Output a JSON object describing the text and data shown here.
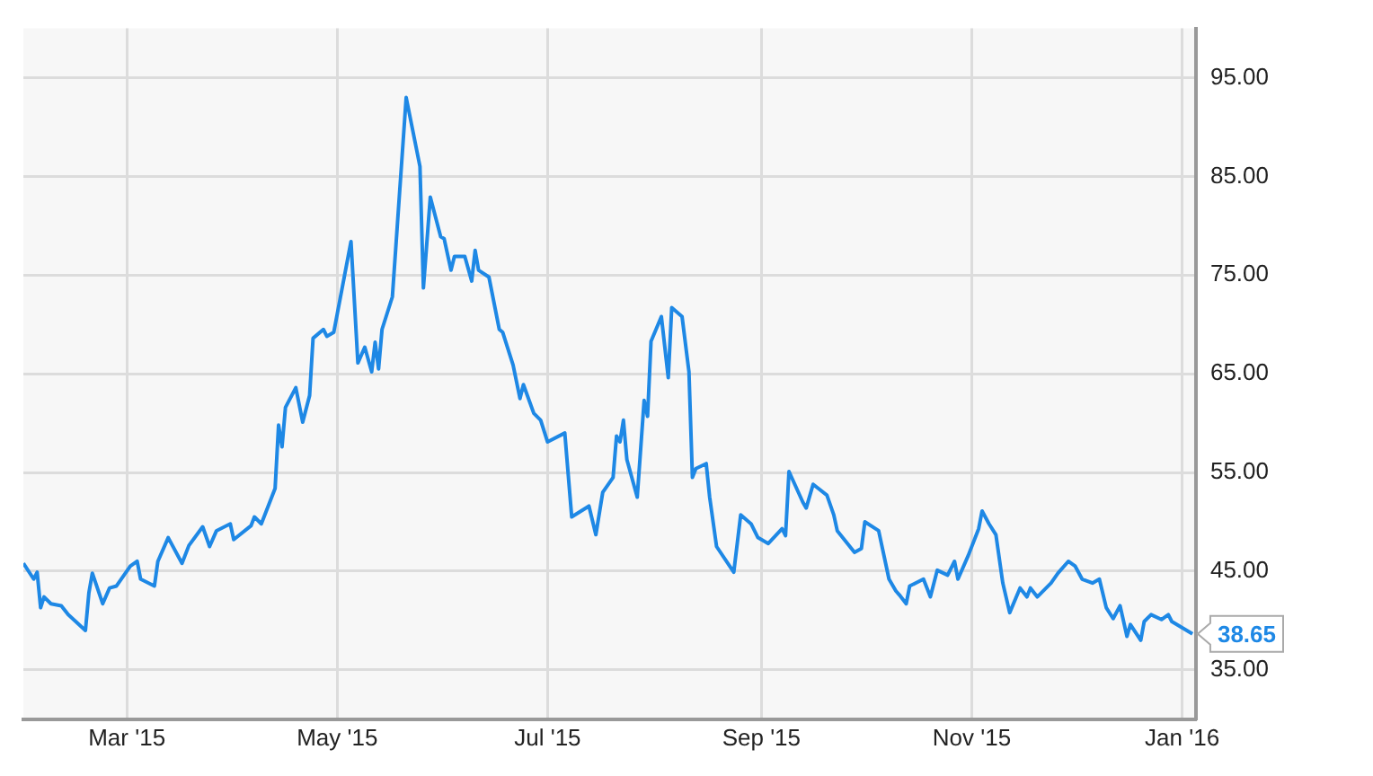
{
  "chart_data": {
    "type": "line",
    "x": [
      "2015-01-30",
      "2015-02-02",
      "2015-02-03",
      "2015-02-04",
      "2015-02-05",
      "2015-02-07",
      "2015-02-10",
      "2015-02-12",
      "2015-02-17",
      "2015-02-18",
      "2015-02-19",
      "2015-02-22",
      "2015-02-24",
      "2015-02-26",
      "2015-03-02",
      "2015-03-04",
      "2015-03-05",
      "2015-03-09",
      "2015-03-10",
      "2015-03-13",
      "2015-03-17",
      "2015-03-19",
      "2015-03-23",
      "2015-03-25",
      "2015-03-27",
      "2015-03-31",
      "2015-04-01",
      "2015-04-06",
      "2015-04-07",
      "2015-04-09",
      "2015-04-13",
      "2015-04-14",
      "2015-04-15",
      "2015-04-16",
      "2015-04-19",
      "2015-04-21",
      "2015-04-23",
      "2015-04-24",
      "2015-04-27",
      "2015-04-28",
      "2015-04-30",
      "2015-05-05",
      "2015-05-07",
      "2015-05-09",
      "2015-05-11",
      "2015-05-12",
      "2015-05-13",
      "2015-05-14",
      "2015-05-17",
      "2015-05-21",
      "2015-05-25",
      "2015-05-26",
      "2015-05-28",
      "2015-05-31",
      "2015-06-01",
      "2015-06-03",
      "2015-06-04",
      "2015-06-07",
      "2015-06-09",
      "2015-06-10",
      "2015-06-11",
      "2015-06-14",
      "2015-06-17",
      "2015-06-18",
      "2015-06-21",
      "2015-06-23",
      "2015-06-24",
      "2015-06-27",
      "2015-06-29",
      "2015-07-01",
      "2015-07-06",
      "2015-07-08",
      "2015-07-13",
      "2015-07-15",
      "2015-07-17",
      "2015-07-20",
      "2015-07-21",
      "2015-07-22",
      "2015-07-23",
      "2015-07-24",
      "2015-07-27",
      "2015-07-29",
      "2015-07-30",
      "2015-07-31",
      "2015-08-03",
      "2015-08-05",
      "2015-08-06",
      "2015-08-09",
      "2015-08-11",
      "2015-08-12",
      "2015-08-13",
      "2015-08-16",
      "2015-08-17",
      "2015-08-19",
      "2015-08-24",
      "2015-08-26",
      "2015-08-29",
      "2015-08-31",
      "2015-09-03",
      "2015-09-07",
      "2015-09-08",
      "2015-09-09",
      "2015-09-13",
      "2015-09-14",
      "2015-09-16",
      "2015-09-20",
      "2015-09-22",
      "2015-09-23",
      "2015-09-28",
      "2015-09-30",
      "2015-10-01",
      "2015-10-05",
      "2015-10-08",
      "2015-10-10",
      "2015-10-11",
      "2015-10-13",
      "2015-10-14",
      "2015-10-18",
      "2015-10-20",
      "2015-10-22",
      "2015-10-25",
      "2015-10-27",
      "2015-10-28",
      "2015-10-31",
      "2015-11-03",
      "2015-11-04",
      "2015-11-06",
      "2015-11-08",
      "2015-11-10",
      "2015-11-12",
      "2015-11-15",
      "2015-11-17",
      "2015-11-18",
      "2015-11-20",
      "2015-11-24",
      "2015-11-26",
      "2015-11-29",
      "2015-12-01",
      "2015-12-03",
      "2015-12-06",
      "2015-12-08",
      "2015-12-10",
      "2015-12-12",
      "2015-12-14",
      "2015-12-16",
      "2015-12-17",
      "2015-12-20",
      "2015-12-21",
      "2015-12-23",
      "2015-12-26",
      "2015-12-28",
      "2015-12-29",
      "2016-01-04"
    ],
    "values": [
      45.8,
      44.2,
      44.9,
      41.3,
      42.4,
      41.7,
      41.5,
      40.6,
      39.0,
      42.8,
      44.8,
      41.7,
      43.3,
      43.5,
      45.5,
      46.0,
      44.2,
      43.5,
      46.0,
      48.4,
      45.8,
      47.6,
      49.5,
      47.5,
      49.1,
      49.8,
      48.2,
      49.6,
      50.5,
      49.8,
      53.4,
      59.8,
      57.6,
      61.6,
      63.6,
      60.1,
      62.8,
      68.6,
      69.5,
      68.8,
      69.2,
      78.4,
      66.1,
      67.7,
      65.2,
      68.2,
      65.5,
      69.5,
      72.8,
      93.0,
      86.0,
      73.7,
      82.9,
      78.9,
      78.7,
      75.5,
      76.9,
      76.9,
      74.4,
      77.5,
      75.5,
      74.8,
      69.5,
      69.2,
      65.9,
      62.5,
      63.9,
      61.0,
      60.3,
      58.1,
      59.0,
      50.5,
      51.6,
      48.7,
      53.0,
      54.5,
      58.7,
      58.1,
      60.3,
      56.3,
      52.5,
      62.3,
      60.7,
      68.3,
      70.8,
      64.6,
      71.7,
      70.8,
      65.2,
      54.5,
      55.4,
      55.9,
      52.5,
      47.5,
      44.9,
      50.7,
      49.8,
      48.4,
      47.8,
      49.3,
      48.6,
      55.1,
      52.0,
      51.4,
      53.8,
      52.7,
      50.7,
      49.1,
      46.9,
      47.3,
      50.0,
      49.1,
      44.2,
      43.0,
      42.6,
      41.7,
      43.5,
      44.2,
      42.4,
      45.1,
      44.6,
      46.0,
      44.2,
      46.6,
      49.3,
      51.1,
      49.8,
      48.7,
      43.8,
      40.8,
      43.3,
      42.4,
      43.3,
      42.4,
      43.8,
      44.8,
      46.0,
      45.5,
      44.2,
      43.8,
      44.2,
      41.3,
      40.2,
      41.5,
      38.4,
      39.6,
      38.0,
      39.9,
      40.6,
      40.1,
      40.6,
      39.9,
      38.65
    ],
    "color": "#1e88e5",
    "xlim": [
      "2015-01-30",
      "2016-01-05"
    ],
    "xticks": [
      {
        "value": "2015-03-01",
        "label": "Mar '15"
      },
      {
        "value": "2015-05-01",
        "label": "May '15"
      },
      {
        "value": "2015-07-01",
        "label": "Jul '15"
      },
      {
        "value": "2015-09-01",
        "label": "Sep '15"
      },
      {
        "value": "2015-11-01",
        "label": "Nov '15"
      },
      {
        "value": "2016-01-01",
        "label": "Jan '16"
      }
    ],
    "ylim": [
      30,
      100
    ],
    "yticks": [
      {
        "value": 35,
        "label": "35.00"
      },
      {
        "value": 45,
        "label": "45.00"
      },
      {
        "value": 55,
        "label": "55.00"
      },
      {
        "value": 65,
        "label": "65.00"
      },
      {
        "value": 75,
        "label": "75.00"
      },
      {
        "value": 85,
        "label": "85.00"
      },
      {
        "value": 95,
        "label": "95.00"
      }
    ],
    "grid": true,
    "annotations": [
      {
        "text": "38.65",
        "x": "2016-01-04",
        "y": 38.65
      }
    ]
  }
}
